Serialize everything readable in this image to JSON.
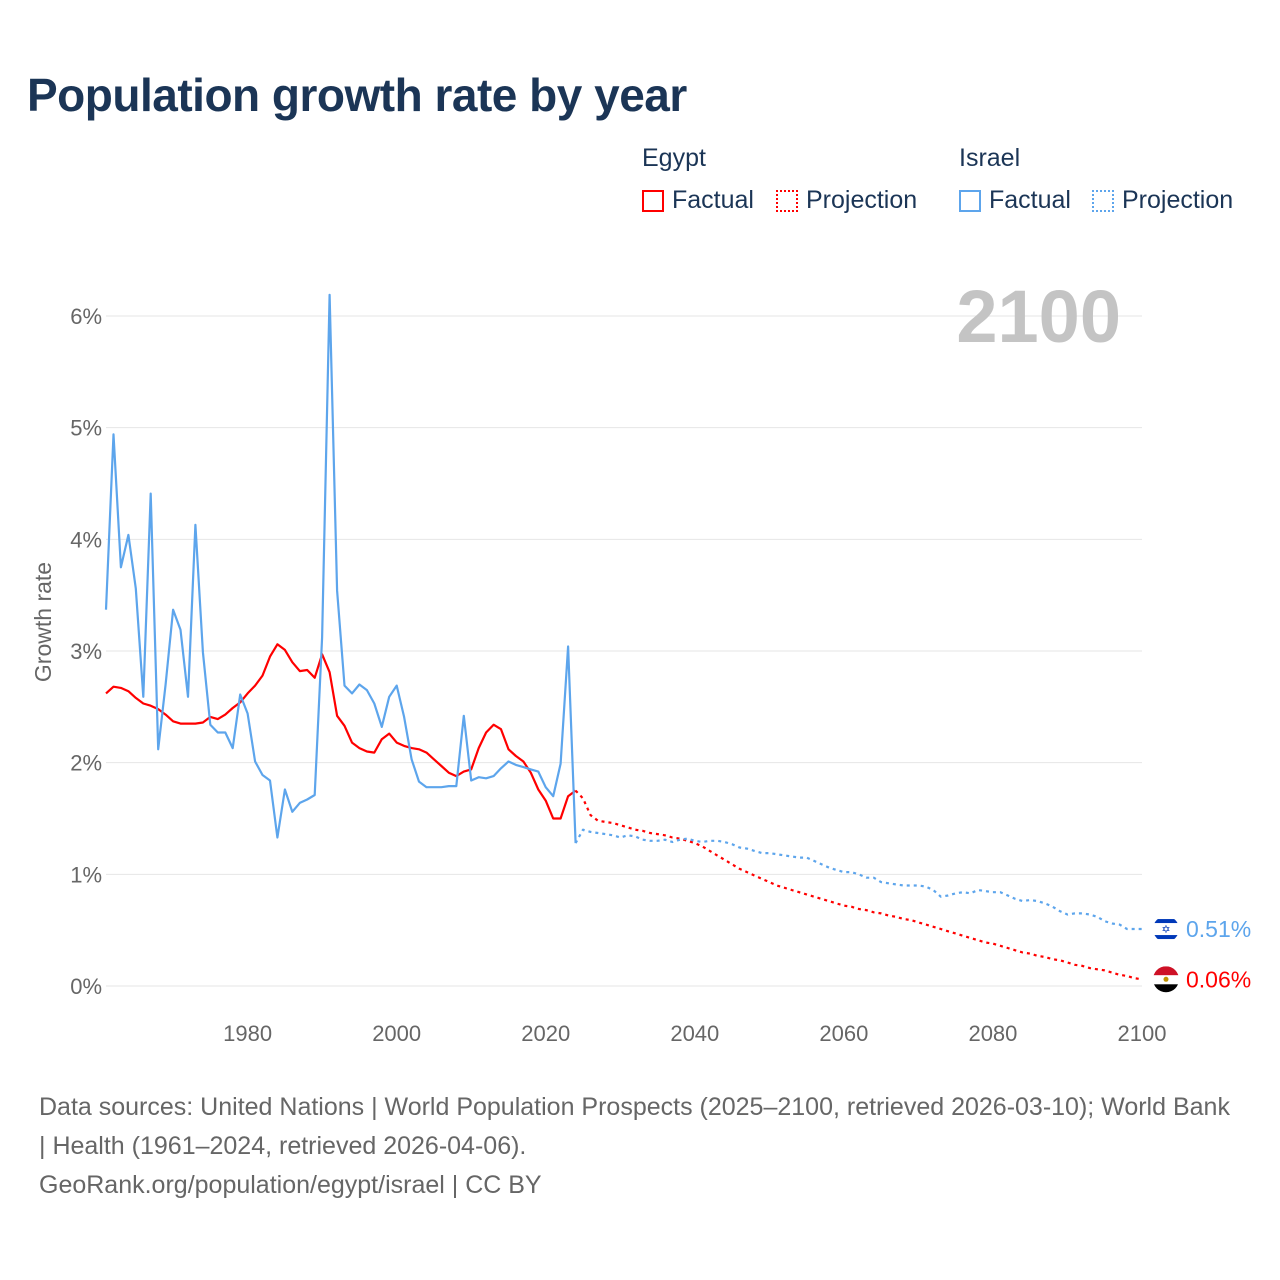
{
  "title": "Population growth rate by year",
  "legend": {
    "groups": [
      {
        "name": "Egypt",
        "color": "#ff0000",
        "factual_label": "Factual",
        "projection_label": "Projection"
      },
      {
        "name": "Israel",
        "color": "#5da5ec",
        "factual_label": "Factual",
        "projection_label": "Projection"
      }
    ]
  },
  "year_display": "2100",
  "chart_data": {
    "type": "line",
    "title": "Population growth rate by year",
    "xlabel": "",
    "ylabel": "Growth rate",
    "xlim": [
      1961,
      2100
    ],
    "ylim": [
      0,
      6
    ],
    "x_ticks": [
      1980,
      2000,
      2020,
      2040,
      2060,
      2080,
      2100
    ],
    "x_tick_labels": [
      "1980",
      "2000",
      "2020",
      "2040",
      "2060",
      "2080",
      "2100"
    ],
    "y_ticks": [
      0,
      1,
      2,
      3,
      4,
      5,
      6
    ],
    "y_tick_labels": [
      "0%",
      "1%",
      "2%",
      "3%",
      "4%",
      "5%",
      "6%"
    ],
    "grid": true,
    "legend_position": "top-right",
    "series": [
      {
        "name": "Egypt",
        "color": "#ff0000",
        "end_label": "0.06%",
        "factual": {
          "x_start": 1961,
          "values": [
            2.62,
            2.68,
            2.67,
            2.64,
            2.58,
            2.53,
            2.51,
            2.48,
            2.43,
            2.37,
            2.35,
            2.35,
            2.35,
            2.36,
            2.41,
            2.39,
            2.43,
            2.49,
            2.54,
            2.62,
            2.69,
            2.78,
            2.95,
            3.06,
            3.01,
            2.9,
            2.82,
            2.83,
            2.76,
            2.97,
            2.81,
            2.42,
            2.33,
            2.18,
            2.13,
            2.1,
            2.09,
            2.21,
            2.26,
            2.18,
            2.15,
            2.13,
            2.12,
            2.09,
            2.03,
            1.97,
            1.91,
            1.88,
            1.92,
            1.94,
            2.13,
            2.27,
            2.34,
            2.3,
            2.12,
            2.06,
            2.01,
            1.91,
            1.76,
            1.66,
            1.5,
            1.5,
            1.7,
            1.75
          ]
        },
        "projection": {
          "x_start": 2024,
          "values": [
            1.75,
            1.68,
            1.53,
            1.48,
            1.47,
            1.46,
            1.44,
            1.42,
            1.4,
            1.39,
            1.37,
            1.36,
            1.35,
            1.33,
            1.32,
            1.3,
            1.28,
            1.25,
            1.21,
            1.17,
            1.13,
            1.09,
            1.05,
            1.02,
            0.99,
            0.96,
            0.93,
            0.9,
            0.88,
            0.86,
            0.84,
            0.82,
            0.8,
            0.78,
            0.76,
            0.74,
            0.72,
            0.71,
            0.69,
            0.68,
            0.66,
            0.65,
            0.63,
            0.62,
            0.6,
            0.59,
            0.57,
            0.55,
            0.53,
            0.51,
            0.49,
            0.47,
            0.45,
            0.43,
            0.41,
            0.39,
            0.38,
            0.36,
            0.34,
            0.32,
            0.3,
            0.29,
            0.27,
            0.26,
            0.24,
            0.23,
            0.21,
            0.19,
            0.18,
            0.16,
            0.15,
            0.14,
            0.12,
            0.1,
            0.09,
            0.07,
            0.06
          ]
        }
      },
      {
        "name": "Israel",
        "color": "#5da5ec",
        "end_label": "0.51%",
        "factual": {
          "x_start": 1961,
          "values": [
            3.37,
            4.94,
            3.75,
            4.04,
            3.56,
            2.59,
            4.41,
            2.12,
            2.7,
            3.37,
            3.19,
            2.59,
            4.13,
            2.99,
            2.34,
            2.27,
            2.27,
            2.13,
            2.61,
            2.44,
            2.01,
            1.89,
            1.84,
            1.33,
            1.76,
            1.56,
            1.64,
            1.67,
            1.71,
            3.12,
            6.19,
            3.54,
            2.69,
            2.62,
            2.7,
            2.65,
            2.53,
            2.32,
            2.59,
            2.69,
            2.41,
            2.03,
            1.83,
            1.78,
            1.78,
            1.78,
            1.79,
            1.79,
            2.42,
            1.84,
            1.87,
            1.86,
            1.88,
            1.95,
            2.01,
            1.98,
            1.96,
            1.94,
            1.92,
            1.78,
            1.7,
            1.99,
            3.04,
            1.28
          ]
        },
        "projection": {
          "x_start": 2024,
          "values": [
            1.28,
            1.4,
            1.38,
            1.37,
            1.36,
            1.35,
            1.33,
            1.35,
            1.34,
            1.31,
            1.3,
            1.3,
            1.31,
            1.29,
            1.31,
            1.32,
            1.3,
            1.29,
            1.3,
            1.3,
            1.29,
            1.27,
            1.24,
            1.23,
            1.21,
            1.19,
            1.19,
            1.18,
            1.17,
            1.16,
            1.15,
            1.15,
            1.12,
            1.09,
            1.06,
            1.04,
            1.02,
            1.02,
            1.0,
            0.97,
            0.97,
            0.93,
            0.92,
            0.91,
            0.9,
            0.9,
            0.9,
            0.89,
            0.86,
            0.8,
            0.81,
            0.83,
            0.84,
            0.83,
            0.86,
            0.85,
            0.84,
            0.84,
            0.81,
            0.78,
            0.76,
            0.77,
            0.76,
            0.74,
            0.71,
            0.67,
            0.64,
            0.65,
            0.65,
            0.64,
            0.62,
            0.58,
            0.56,
            0.55,
            0.51,
            0.51,
            0.51
          ]
        }
      }
    ]
  },
  "footer": {
    "sources": "Data sources: United Nations | World Population Prospects (2025–2100, retrieved 2026-03-10); World Bank | Health (1961–2024, retrieved 2026-04-06).",
    "credit": "GeoRank.org/population/egypt/israel | CC BY"
  }
}
